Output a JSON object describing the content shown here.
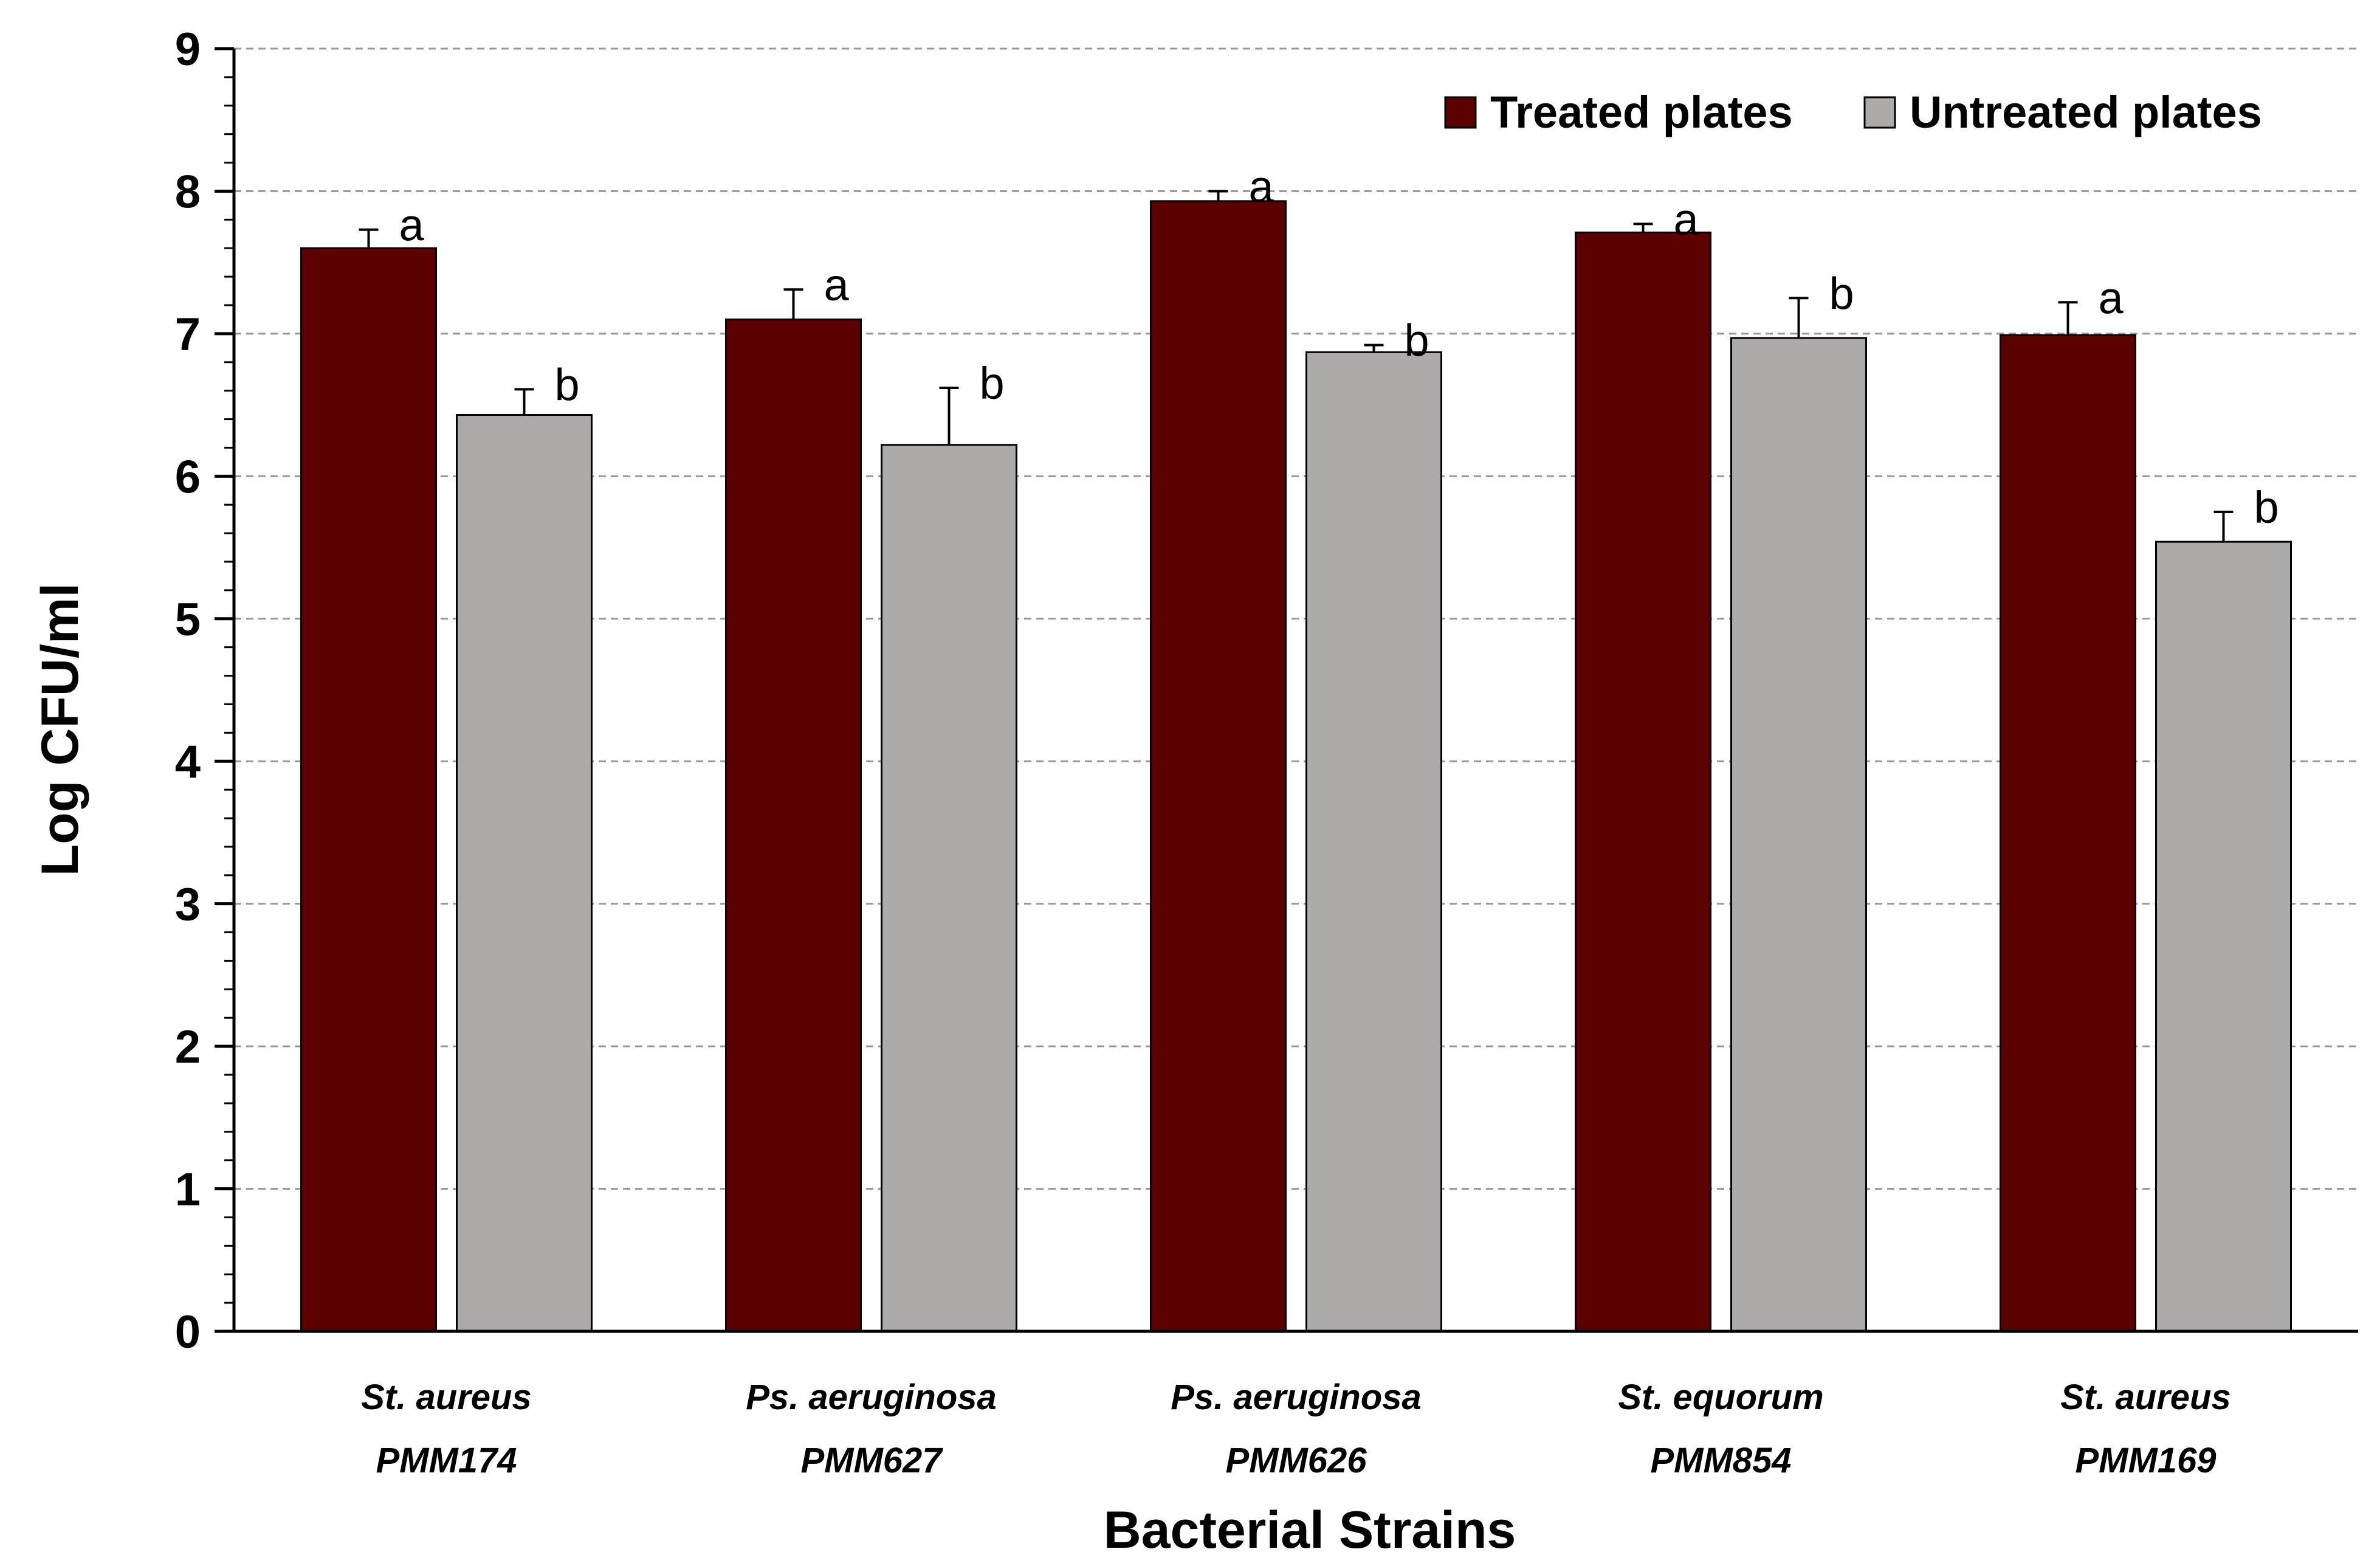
{
  "chart_data": {
    "type": "bar",
    "categories": [
      [
        "St. aureus",
        "PMM174"
      ],
      [
        "Ps. aeruginosa",
        "PMM627"
      ],
      [
        "Ps. aeruginosa",
        "PMM626"
      ],
      [
        "St. equorum",
        "PMM854"
      ],
      [
        "St. aureus",
        "PMM169"
      ]
    ],
    "series": [
      {
        "name": "Treated plates",
        "color": "#5c0000",
        "values": [
          7.6,
          7.1,
          7.93,
          7.71,
          6.99
        ],
        "errors": [
          0.13,
          0.21,
          0.07,
          0.06,
          0.23
        ],
        "letters": [
          "a",
          "a",
          "a",
          "a",
          "a"
        ]
      },
      {
        "name": "Untreated plates",
        "color": "#adaaaa",
        "values": [
          6.43,
          6.22,
          6.87,
          6.97,
          5.54
        ],
        "errors": [
          0.18,
          0.4,
          0.05,
          0.28,
          0.21
        ],
        "letters": [
          "b",
          "b",
          "b",
          "b",
          "b"
        ]
      }
    ],
    "xlabel": "Bacterial Strains",
    "ylabel": "Log CFU/ml",
    "ylim": [
      0,
      9
    ],
    "yticks": [
      "0",
      "1",
      "2",
      "3",
      "4",
      "5",
      "6",
      "7",
      "8",
      "9"
    ],
    "grid": true,
    "legend_position": "top-right"
  }
}
